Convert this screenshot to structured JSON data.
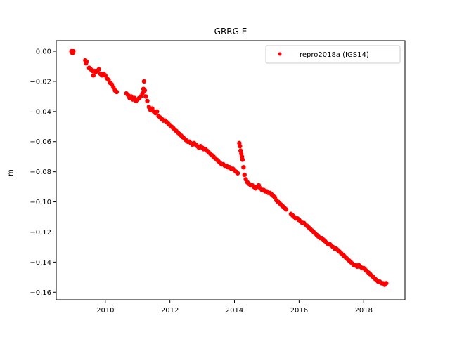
{
  "chart_data": {
    "type": "scatter",
    "title": "GRRG E",
    "xlabel": "",
    "ylabel": "m",
    "xlim": [
      2008.48,
      2019.28
    ],
    "ylim": [
      -0.165,
      0.007
    ],
    "xticks": [
      2010,
      2012,
      2014,
      2016,
      2018
    ],
    "yticks": [
      0.0,
      -0.02,
      -0.04,
      -0.06,
      -0.08,
      -0.1,
      -0.12,
      -0.14,
      -0.16
    ],
    "ytick_labels": [
      "0.00",
      "−0.02",
      "−0.04",
      "−0.06",
      "−0.08",
      "−0.10",
      "−0.12",
      "−0.14",
      "−0.16"
    ],
    "grid": false,
    "legend": {
      "position": "top-right",
      "entries": [
        {
          "name": "repro2018a (IGS14)",
          "color": "#ff0000",
          "marker": "circle"
        }
      ]
    },
    "series": [
      {
        "name": "repro2018a (IGS14)",
        "color": "#ff0000",
        "points": [
          [
            2008.95,
            0.0
          ],
          [
            2008.97,
            -0.001
          ],
          [
            2008.99,
            0.0
          ],
          [
            2009.0,
            -0.001
          ],
          [
            2009.01,
            0.0
          ],
          [
            2009.38,
            -0.006
          ],
          [
            2009.4,
            -0.008
          ],
          [
            2009.42,
            -0.007
          ],
          [
            2009.5,
            -0.011
          ],
          [
            2009.55,
            -0.012
          ],
          [
            2009.6,
            -0.013
          ],
          [
            2009.63,
            -0.016
          ],
          [
            2009.66,
            -0.013
          ],
          [
            2009.7,
            -0.014
          ],
          [
            2009.75,
            -0.013
          ],
          [
            2009.8,
            -0.012
          ],
          [
            2009.85,
            -0.015
          ],
          [
            2009.9,
            -0.016
          ],
          [
            2009.95,
            -0.015
          ],
          [
            2010.0,
            -0.016
          ],
          [
            2010.05,
            -0.018
          ],
          [
            2010.1,
            -0.019
          ],
          [
            2010.15,
            -0.021
          ],
          [
            2010.2,
            -0.022
          ],
          [
            2010.25,
            -0.024
          ],
          [
            2010.3,
            -0.026
          ],
          [
            2010.35,
            -0.027
          ],
          [
            2010.65,
            -0.028
          ],
          [
            2010.7,
            -0.029
          ],
          [
            2010.75,
            -0.031
          ],
          [
            2010.8,
            -0.03
          ],
          [
            2010.85,
            -0.032
          ],
          [
            2010.9,
            -0.031
          ],
          [
            2010.95,
            -0.033
          ],
          [
            2011.0,
            -0.032
          ],
          [
            2011.05,
            -0.031
          ],
          [
            2011.1,
            -0.03
          ],
          [
            2011.15,
            -0.028
          ],
          [
            2011.18,
            -0.025
          ],
          [
            2011.2,
            -0.02
          ],
          [
            2011.22,
            -0.026
          ],
          [
            2011.25,
            -0.03
          ],
          [
            2011.3,
            -0.033
          ],
          [
            2011.35,
            -0.037
          ],
          [
            2011.4,
            -0.039
          ],
          [
            2011.45,
            -0.038
          ],
          [
            2011.5,
            -0.04
          ],
          [
            2011.55,
            -0.041
          ],
          [
            2011.6,
            -0.04
          ],
          [
            2011.65,
            -0.043
          ],
          [
            2011.7,
            -0.044
          ],
          [
            2011.75,
            -0.045
          ],
          [
            2011.8,
            -0.046
          ],
          [
            2011.85,
            -0.046
          ],
          [
            2011.9,
            -0.047
          ],
          [
            2011.95,
            -0.048
          ],
          [
            2012.0,
            -0.049
          ],
          [
            2012.05,
            -0.05
          ],
          [
            2012.1,
            -0.051
          ],
          [
            2012.15,
            -0.052
          ],
          [
            2012.2,
            -0.053
          ],
          [
            2012.25,
            -0.054
          ],
          [
            2012.3,
            -0.055
          ],
          [
            2012.35,
            -0.056
          ],
          [
            2012.4,
            -0.057
          ],
          [
            2012.45,
            -0.058
          ],
          [
            2012.5,
            -0.059
          ],
          [
            2012.55,
            -0.06
          ],
          [
            2012.6,
            -0.06
          ],
          [
            2012.65,
            -0.061
          ],
          [
            2012.7,
            -0.062
          ],
          [
            2012.75,
            -0.061
          ],
          [
            2012.8,
            -0.062
          ],
          [
            2012.85,
            -0.063
          ],
          [
            2012.9,
            -0.064
          ],
          [
            2012.95,
            -0.063
          ],
          [
            2013.0,
            -0.064
          ],
          [
            2013.05,
            -0.065
          ],
          [
            2013.1,
            -0.065
          ],
          [
            2013.15,
            -0.066
          ],
          [
            2013.2,
            -0.067
          ],
          [
            2013.25,
            -0.068
          ],
          [
            2013.3,
            -0.069
          ],
          [
            2013.35,
            -0.07
          ],
          [
            2013.4,
            -0.071
          ],
          [
            2013.45,
            -0.072
          ],
          [
            2013.5,
            -0.073
          ],
          [
            2013.55,
            -0.074
          ],
          [
            2013.6,
            -0.075
          ],
          [
            2013.65,
            -0.075
          ],
          [
            2013.7,
            -0.076
          ],
          [
            2013.75,
            -0.076
          ],
          [
            2013.8,
            -0.077
          ],
          [
            2013.85,
            -0.077
          ],
          [
            2013.9,
            -0.078
          ],
          [
            2013.95,
            -0.078
          ],
          [
            2014.0,
            -0.079
          ],
          [
            2014.05,
            -0.08
          ],
          [
            2014.1,
            -0.081
          ],
          [
            2014.15,
            -0.061
          ],
          [
            2014.17,
            -0.063
          ],
          [
            2014.19,
            -0.066
          ],
          [
            2014.21,
            -0.068
          ],
          [
            2014.23,
            -0.07
          ],
          [
            2014.25,
            -0.072
          ],
          [
            2014.28,
            -0.077
          ],
          [
            2014.31,
            -0.082
          ],
          [
            2014.35,
            -0.085
          ],
          [
            2014.4,
            -0.087
          ],
          [
            2014.45,
            -0.088
          ],
          [
            2014.5,
            -0.089
          ],
          [
            2014.55,
            -0.089
          ],
          [
            2014.6,
            -0.09
          ],
          [
            2014.65,
            -0.091
          ],
          [
            2014.7,
            -0.09
          ],
          [
            2014.75,
            -0.089
          ],
          [
            2014.8,
            -0.091
          ],
          [
            2014.85,
            -0.092
          ],
          [
            2014.9,
            -0.092
          ],
          [
            2014.95,
            -0.093
          ],
          [
            2015.0,
            -0.093
          ],
          [
            2015.05,
            -0.094
          ],
          [
            2015.1,
            -0.094
          ],
          [
            2015.15,
            -0.095
          ],
          [
            2015.2,
            -0.096
          ],
          [
            2015.25,
            -0.097
          ],
          [
            2015.3,
            -0.099
          ],
          [
            2015.35,
            -0.1
          ],
          [
            2015.4,
            -0.101
          ],
          [
            2015.45,
            -0.102
          ],
          [
            2015.5,
            -0.103
          ],
          [
            2015.55,
            -0.104
          ],
          [
            2015.6,
            -0.105
          ],
          [
            2015.75,
            -0.108
          ],
          [
            2015.8,
            -0.109
          ],
          [
            2015.85,
            -0.11
          ],
          [
            2015.9,
            -0.111
          ],
          [
            2015.95,
            -0.111
          ],
          [
            2016.0,
            -0.112
          ],
          [
            2016.05,
            -0.113
          ],
          [
            2016.1,
            -0.114
          ],
          [
            2016.15,
            -0.114
          ],
          [
            2016.2,
            -0.115
          ],
          [
            2016.25,
            -0.116
          ],
          [
            2016.3,
            -0.117
          ],
          [
            2016.35,
            -0.118
          ],
          [
            2016.4,
            -0.119
          ],
          [
            2016.45,
            -0.12
          ],
          [
            2016.5,
            -0.121
          ],
          [
            2016.55,
            -0.122
          ],
          [
            2016.6,
            -0.123
          ],
          [
            2016.65,
            -0.124
          ],
          [
            2016.7,
            -0.124
          ],
          [
            2016.75,
            -0.125
          ],
          [
            2016.8,
            -0.126
          ],
          [
            2016.85,
            -0.127
          ],
          [
            2016.9,
            -0.128
          ],
          [
            2016.95,
            -0.128
          ],
          [
            2017.0,
            -0.129
          ],
          [
            2017.05,
            -0.13
          ],
          [
            2017.1,
            -0.131
          ],
          [
            2017.15,
            -0.131
          ],
          [
            2017.2,
            -0.132
          ],
          [
            2017.25,
            -0.133
          ],
          [
            2017.3,
            -0.134
          ],
          [
            2017.35,
            -0.135
          ],
          [
            2017.4,
            -0.136
          ],
          [
            2017.45,
            -0.137
          ],
          [
            2017.5,
            -0.138
          ],
          [
            2017.55,
            -0.139
          ],
          [
            2017.6,
            -0.14
          ],
          [
            2017.65,
            -0.141
          ],
          [
            2017.7,
            -0.142
          ],
          [
            2017.75,
            -0.142
          ],
          [
            2017.8,
            -0.143
          ],
          [
            2017.85,
            -0.142
          ],
          [
            2017.9,
            -0.143
          ],
          [
            2017.95,
            -0.144
          ],
          [
            2018.0,
            -0.144
          ],
          [
            2018.05,
            -0.145
          ],
          [
            2018.1,
            -0.146
          ],
          [
            2018.15,
            -0.147
          ],
          [
            2018.2,
            -0.148
          ],
          [
            2018.25,
            -0.149
          ],
          [
            2018.3,
            -0.15
          ],
          [
            2018.35,
            -0.151
          ],
          [
            2018.4,
            -0.152
          ],
          [
            2018.45,
            -0.153
          ],
          [
            2018.5,
            -0.153
          ],
          [
            2018.55,
            -0.154
          ],
          [
            2018.6,
            -0.154
          ],
          [
            2018.65,
            -0.155
          ],
          [
            2018.7,
            -0.154
          ]
        ]
      }
    ]
  }
}
